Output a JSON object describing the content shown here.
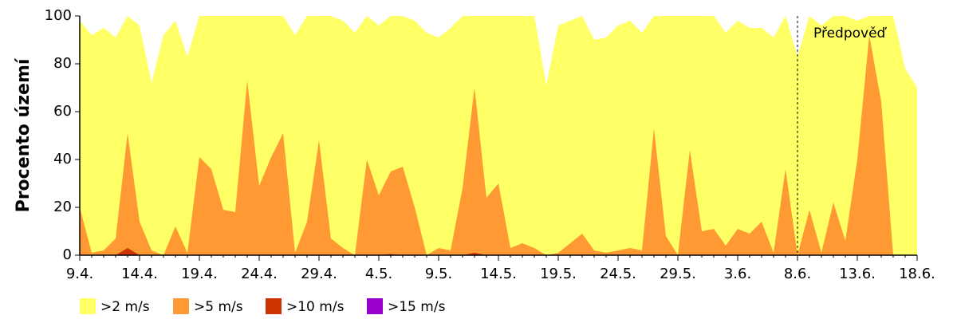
{
  "chart_data": {
    "type": "area",
    "y_label": "Procento území",
    "annotation": "Předpověď",
    "forecast_start": "8.6.",
    "categories": [
      "9.4.",
      null,
      null,
      null,
      null,
      "14.4.",
      null,
      null,
      null,
      null,
      "19.4.",
      null,
      null,
      null,
      null,
      "24.4.",
      null,
      null,
      null,
      null,
      "29.4.",
      null,
      null,
      null,
      null,
      "4.5.",
      null,
      null,
      null,
      null,
      "9.5.",
      null,
      null,
      null,
      null,
      "14.5.",
      null,
      null,
      null,
      null,
      "19.5.",
      null,
      null,
      null,
      null,
      "24.5.",
      null,
      null,
      null,
      null,
      "29.5.",
      null,
      null,
      null,
      null,
      "3.6.",
      null,
      null,
      null,
      null,
      "8.6.",
      null,
      null,
      null,
      null,
      "13.6.",
      null,
      null,
      null,
      null,
      "18.6."
    ],
    "series": [
      {
        "name": ">2 m/s",
        "color": "#ffff66",
        "values": [
          98,
          92,
          95,
          91,
          100,
          96,
          72,
          92,
          98,
          83,
          100,
          100,
          100,
          100,
          100,
          100,
          100,
          100,
          92,
          100,
          100,
          100,
          98,
          93,
          100,
          96,
          100,
          100,
          98,
          93,
          91,
          95,
          100,
          100,
          100,
          100,
          100,
          100,
          100,
          71,
          96,
          98,
          100,
          90,
          91,
          96,
          98,
          93,
          100,
          100,
          100,
          100,
          100,
          100,
          93,
          98,
          95,
          95,
          91,
          100,
          83,
          100,
          96,
          100,
          100,
          98,
          100,
          100,
          100,
          78,
          70
        ]
      },
      {
        "name": ">5 m/s",
        "color": "#ff9933",
        "values": [
          20,
          1,
          2,
          7,
          51,
          14,
          2,
          0,
          12,
          1,
          41,
          36,
          19,
          18,
          73,
          29,
          41,
          51,
          1,
          14,
          48,
          7,
          3,
          0,
          40,
          25,
          35,
          37,
          20,
          0,
          3,
          2,
          28,
          70,
          24,
          30,
          3,
          5,
          3,
          0,
          1,
          5,
          9,
          2,
          1,
          2,
          3,
          2,
          53,
          8,
          0,
          44,
          10,
          11,
          4,
          11,
          9,
          14,
          1,
          36,
          0,
          19,
          1,
          22,
          6,
          40,
          92,
          64,
          0,
          0,
          0
        ]
      },
      {
        "name": ">10 m/s",
        "color": "#cc3300",
        "values": [
          0,
          0,
          0,
          0,
          3,
          0,
          0,
          0,
          0,
          0,
          0,
          0,
          0,
          0,
          0,
          0,
          0,
          0,
          0,
          0,
          0,
          0,
          0,
          0,
          0,
          0,
          0.5,
          0,
          0,
          0,
          0,
          0,
          0,
          1,
          0,
          0,
          0,
          0,
          0,
          0,
          0,
          0,
          0,
          0,
          0,
          0,
          0,
          0,
          0,
          0,
          0,
          0,
          0,
          0,
          0,
          0,
          0,
          0,
          0,
          0,
          0,
          0,
          0,
          0,
          0,
          0,
          0,
          0,
          0,
          0,
          0
        ]
      },
      {
        "name": ">15 m/s",
        "color": "#9900cc",
        "values": [
          0,
          0,
          0,
          0,
          0,
          0,
          0,
          0,
          0,
          0,
          0,
          0,
          0,
          0,
          0,
          0,
          0,
          0,
          0,
          0,
          0,
          0,
          0,
          0,
          0,
          0,
          0,
          0,
          0,
          0,
          0,
          0,
          0,
          0,
          0,
          0,
          0,
          0,
          0,
          0,
          0,
          0,
          0,
          0,
          0,
          0,
          0,
          0,
          0,
          0,
          0,
          0,
          0,
          0,
          0,
          0,
          0,
          0,
          0,
          0,
          0,
          0,
          0,
          0,
          0,
          0,
          0,
          0,
          0,
          0,
          0
        ]
      }
    ],
    "ylim": [
      0,
      100
    ],
    "yticks": [
      0,
      20,
      40,
      60,
      80,
      100
    ]
  }
}
